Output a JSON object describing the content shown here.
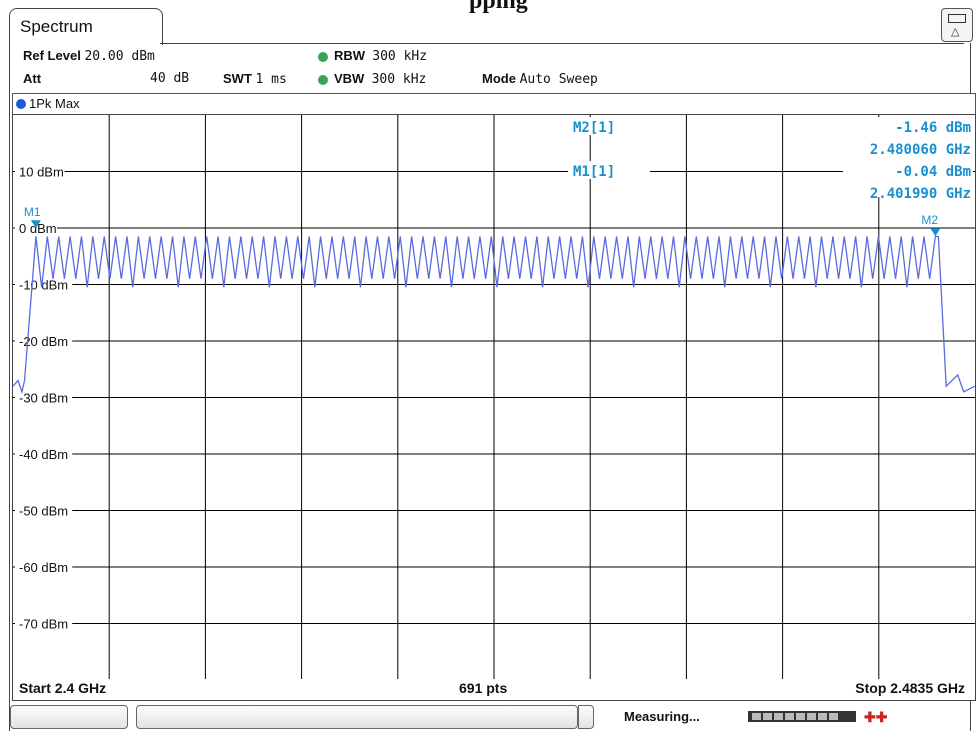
{
  "window": {
    "tab_label": "Spectrum",
    "title_fragment": "pping"
  },
  "header": {
    "ref_level_label": "Ref Level",
    "ref_level_value": "20.00 dBm",
    "att_label": "Att",
    "att_value": "40 dB",
    "swt_label": "SWT",
    "swt_value": "1 ms",
    "rbw_label": "RBW",
    "rbw_value": "300 kHz",
    "vbw_label": "VBW",
    "vbw_value": "300 kHz",
    "mode_label": "Mode",
    "mode_value": "Auto Sweep"
  },
  "trace": {
    "label": "1Pk Max"
  },
  "markers": {
    "m2_label": "M2[1]",
    "m2_level": "-1.46 dBm",
    "m2_freq": "2.480060 GHz",
    "m1_label": "M1[1]",
    "m1_level": "-0.04 dBm",
    "m1_freq": "2.401990 GHz",
    "m1_tag": "M1",
    "m2_tag": "M2"
  },
  "footer": {
    "start": "Start 2.4 GHz",
    "points": "691 pts",
    "stop": "Stop 2.4835 GHz"
  },
  "status": {
    "text": "Measuring..."
  },
  "colors": {
    "trace": "#5a6be0",
    "marker_text": "#1a8fd0",
    "grid": "#000000",
    "status_ok": "#3aa45a",
    "trace_dot": "#1f59d6"
  },
  "chart_data": {
    "type": "line",
    "title": "",
    "xlabel": "",
    "ylabel": "",
    "xlim": [
      2.4,
      2.4835
    ],
    "ylim": [
      -80,
      20
    ],
    "y_tick_labels": [
      "10 dBm",
      "0 dBm",
      "-10 dBm",
      "-20 dBm",
      "-30 dBm",
      "-40 dBm",
      "-50 dBm",
      "-60 dBm",
      "-70 dBm"
    ],
    "y_tick_values": [
      10,
      0,
      -10,
      -20,
      -30,
      -40,
      -50,
      -60,
      -70
    ],
    "grid": true,
    "series": [
      {
        "x": [
          2.4,
          2.401,
          2.40199,
          2.41,
          2.42,
          2.43,
          2.44,
          2.45,
          2.46,
          2.47,
          2.48006,
          2.481,
          2.482,
          2.4835
        ],
        "y": [
          -28,
          -27,
          -0.04,
          -1.5,
          -1.5,
          -1.5,
          -1.5,
          -1.5,
          -1.5,
          -1.5,
          -1.46,
          -28,
          -29,
          -28
        ]
      }
    ],
    "hopping": {
      "channel_count": 79,
      "peak_dbm": -1.5,
      "valley_dbm": -9
    }
  }
}
